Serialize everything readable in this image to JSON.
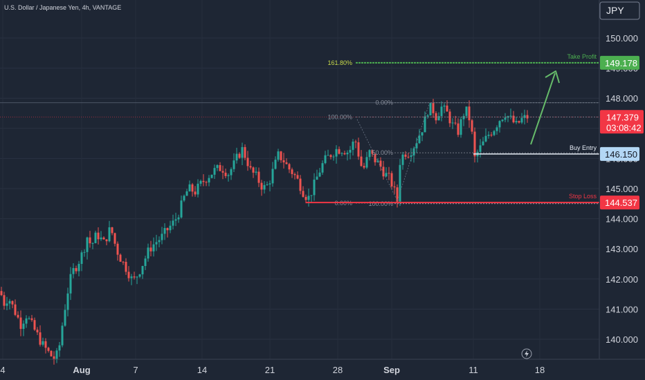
{
  "header": {
    "symbol_title": "U.S. Dollar / Japanese Yen, 4h, VANTAGE",
    "currency_button": "JPY"
  },
  "colors": {
    "background": "#1e2634",
    "up": "#26a69a",
    "down": "#ef5350",
    "take_profit": "#4caf50",
    "stop_loss": "#f23645",
    "buy_entry": "#a3cef1",
    "arrow": "#66bb6a"
  },
  "chart_data": {
    "type": "candlestick",
    "ylim": [
      139.3,
      150.7
    ],
    "y_ticks": [
      "150.000",
      "149.000",
      "148.000",
      "147.000",
      "146.000",
      "145.000",
      "144.000",
      "143.000",
      "142.000",
      "141.000",
      "140.000"
    ],
    "x_tick_labels": [
      "4",
      "Aug",
      "7",
      "14",
      "21",
      "28",
      "Sep",
      "11",
      "18"
    ],
    "current_price": {
      "label": "147.379",
      "countdown": "03:08:42",
      "value": 147.379
    },
    "levels": {
      "take_profit": {
        "label": "Take Profit",
        "value": 149.178,
        "price_label": "149.178",
        "fib_label": "161.80%"
      },
      "buy_entry": {
        "label": "Buy Entry",
        "value": 146.15,
        "price_label": "146.150"
      },
      "stop_loss": {
        "label": "Stop Loss",
        "value": 144.537,
        "price_label": "144.537"
      }
    },
    "fib_left": [
      {
        "label": "100.00%",
        "value": 147.379
      },
      {
        "label": "0.00%",
        "value": 144.52
      }
    ],
    "fib_right": [
      {
        "label": "0.00%",
        "value": 147.85
      },
      {
        "label": "50.00%",
        "value": 146.19
      },
      {
        "label": "100.00%",
        "value": 144.5
      }
    ],
    "horizontal_line_value": 147.85,
    "waypoints": [
      [
        0,
        141.6
      ],
      [
        6,
        141.2
      ],
      [
        12,
        141.4
      ],
      [
        22,
        140.9
      ],
      [
        30,
        140.5
      ],
      [
        38,
        140.8
      ],
      [
        50,
        140.3
      ],
      [
        62,
        139.8
      ],
      [
        72,
        139.5
      ],
      [
        80,
        139.3
      ],
      [
        86,
        139.8
      ],
      [
        92,
        140.8
      ],
      [
        98,
        141.6
      ],
      [
        104,
        142.2
      ],
      [
        112,
        142.5
      ],
      [
        120,
        142.9
      ],
      [
        126,
        143.4
      ],
      [
        132,
        143.1
      ],
      [
        140,
        143.5
      ],
      [
        150,
        143.2
      ],
      [
        160,
        143.7
      ],
      [
        168,
        143.0
      ],
      [
        176,
        142.6
      ],
      [
        184,
        142.3
      ],
      [
        192,
        141.9
      ],
      [
        200,
        142.2
      ],
      [
        208,
        142.6
      ],
      [
        216,
        143.0
      ],
      [
        224,
        143.2
      ],
      [
        234,
        143.4
      ],
      [
        244,
        143.7
      ],
      [
        252,
        143.9
      ],
      [
        260,
        144.3
      ],
      [
        266,
        144.7
      ],
      [
        272,
        145.0
      ],
      [
        282,
        144.9
      ],
      [
        292,
        145.2
      ],
      [
        300,
        145.4
      ],
      [
        310,
        145.6
      ],
      [
        320,
        145.7
      ],
      [
        330,
        145.5
      ],
      [
        338,
        145.8
      ],
      [
        344,
        146.1
      ],
      [
        350,
        146.3
      ],
      [
        356,
        146.0
      ],
      [
        362,
        145.6
      ],
      [
        370,
        145.4
      ],
      [
        378,
        145.1
      ],
      [
        384,
        145.0
      ],
      [
        390,
        145.3
      ],
      [
        396,
        145.7
      ],
      [
        402,
        146.1
      ],
      [
        408,
        146.0
      ],
      [
        416,
        145.7
      ],
      [
        424,
        145.5
      ],
      [
        432,
        145.2
      ],
      [
        440,
        144.8
      ],
      [
        446,
        144.7
      ],
      [
        452,
        145.0
      ],
      [
        460,
        145.5
      ],
      [
        468,
        145.9
      ],
      [
        476,
        146.1
      ],
      [
        486,
        146.3
      ],
      [
        496,
        146.3
      ],
      [
        504,
        146.2
      ],
      [
        512,
        146.6
      ],
      [
        516,
        146.5
      ],
      [
        520,
        145.8
      ],
      [
        526,
        145.7
      ],
      [
        534,
        146.2
      ],
      [
        540,
        146.0
      ],
      [
        548,
        145.8
      ],
      [
        556,
        145.5
      ],
      [
        564,
        145.3
      ],
      [
        570,
        144.9
      ],
      [
        574,
        144.6
      ],
      [
        578,
        145.9
      ],
      [
        584,
        146.2
      ],
      [
        592,
        146.2
      ],
      [
        600,
        146.5
      ],
      [
        606,
        146.8
      ],
      [
        612,
        147.1
      ],
      [
        618,
        147.6
      ],
      [
        624,
        147.7
      ],
      [
        630,
        147.4
      ],
      [
        638,
        147.7
      ],
      [
        646,
        147.5
      ],
      [
        654,
        147.1
      ],
      [
        662,
        146.9
      ],
      [
        670,
        147.5
      ],
      [
        676,
        147.6
      ],
      [
        682,
        146.8
      ],
      [
        686,
        146.0
      ],
      [
        690,
        146.2
      ],
      [
        698,
        146.5
      ],
      [
        706,
        146.8
      ],
      [
        714,
        147.0
      ],
      [
        722,
        147.3
      ],
      [
        730,
        147.5
      ],
      [
        738,
        147.3
      ],
      [
        746,
        147.1
      ],
      [
        754,
        147.3
      ],
      [
        762,
        147.38
      ]
    ]
  }
}
